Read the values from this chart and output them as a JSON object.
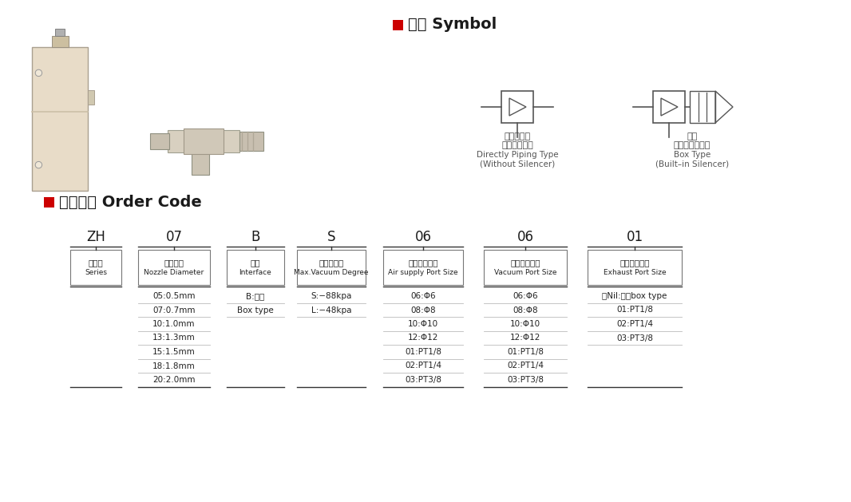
{
  "bg_color": "#ffffff",
  "text_color": "#333333",
  "red_color": "#cc0000",
  "symbol_title": "符号 Symbol",
  "order_code_title": "订货型号 Order Code",
  "type1_chinese": "直接接管型",
  "type1_chinese2": "（无消声器）",
  "type1_english": "Directly Piping Type",
  "type1_english2": "(Without Silencer)",
  "type2_chinese": "盒型",
  "type2_chinese2": "（内置消声器）",
  "type2_english": "Box Type",
  "type2_english2": "(Built–in Silencer)",
  "col_headers": [
    "ZH",
    "07",
    "B",
    "S",
    "06",
    "06",
    "01"
  ],
  "col_labels_cn_1": "系列号",
  "col_labels_en_1": "Series",
  "col_labels_cn_2": "嘱嘴直径",
  "col_labels_en_2": "Nozzle Diameter",
  "col_labels_cn_3": "接口",
  "col_labels_en_3": "Interface",
  "col_labels_cn_4": "最高真空度",
  "col_labels_en_4": "Max.Vacuum Degree",
  "col_labels_cn_5": "供气连接口径",
  "col_labels_en_5": "Air supply Port Size",
  "col_labels_cn_6": "真空连接口径",
  "col_labels_en_6": "Vacuum Port Size",
  "col_labels_cn_7": "排气连接口径",
  "col_labels_en_7": "Exhaust Port Size",
  "col2_data": [
    "05:0.5mm",
    "07:0.7mm",
    "10:1.0mm",
    "13:1.3mm",
    "15:1.5mm",
    "18:1.8mm",
    "20:2.0mm"
  ],
  "col3_data": [
    "B:盒型",
    "Box type"
  ],
  "col4_data": [
    "S:−88kpa",
    "L:−48kpa"
  ],
  "col5_data": [
    "06:Φ6",
    "08:Φ8",
    "10:Φ10",
    "12:Φ12",
    "01:PT1/8",
    "02:PT1/4",
    "03:PT3/8"
  ],
  "col6_data": [
    "06:Φ6",
    "08:Φ8",
    "10:Φ10",
    "12:Φ12",
    "01:PT1/8",
    "02:PT1/4",
    "03:PT3/8"
  ],
  "col7_data": [
    "无Nil:盒型box type",
    "01:PT1/8",
    "02:PT1/4",
    "03:PT3/8"
  ]
}
